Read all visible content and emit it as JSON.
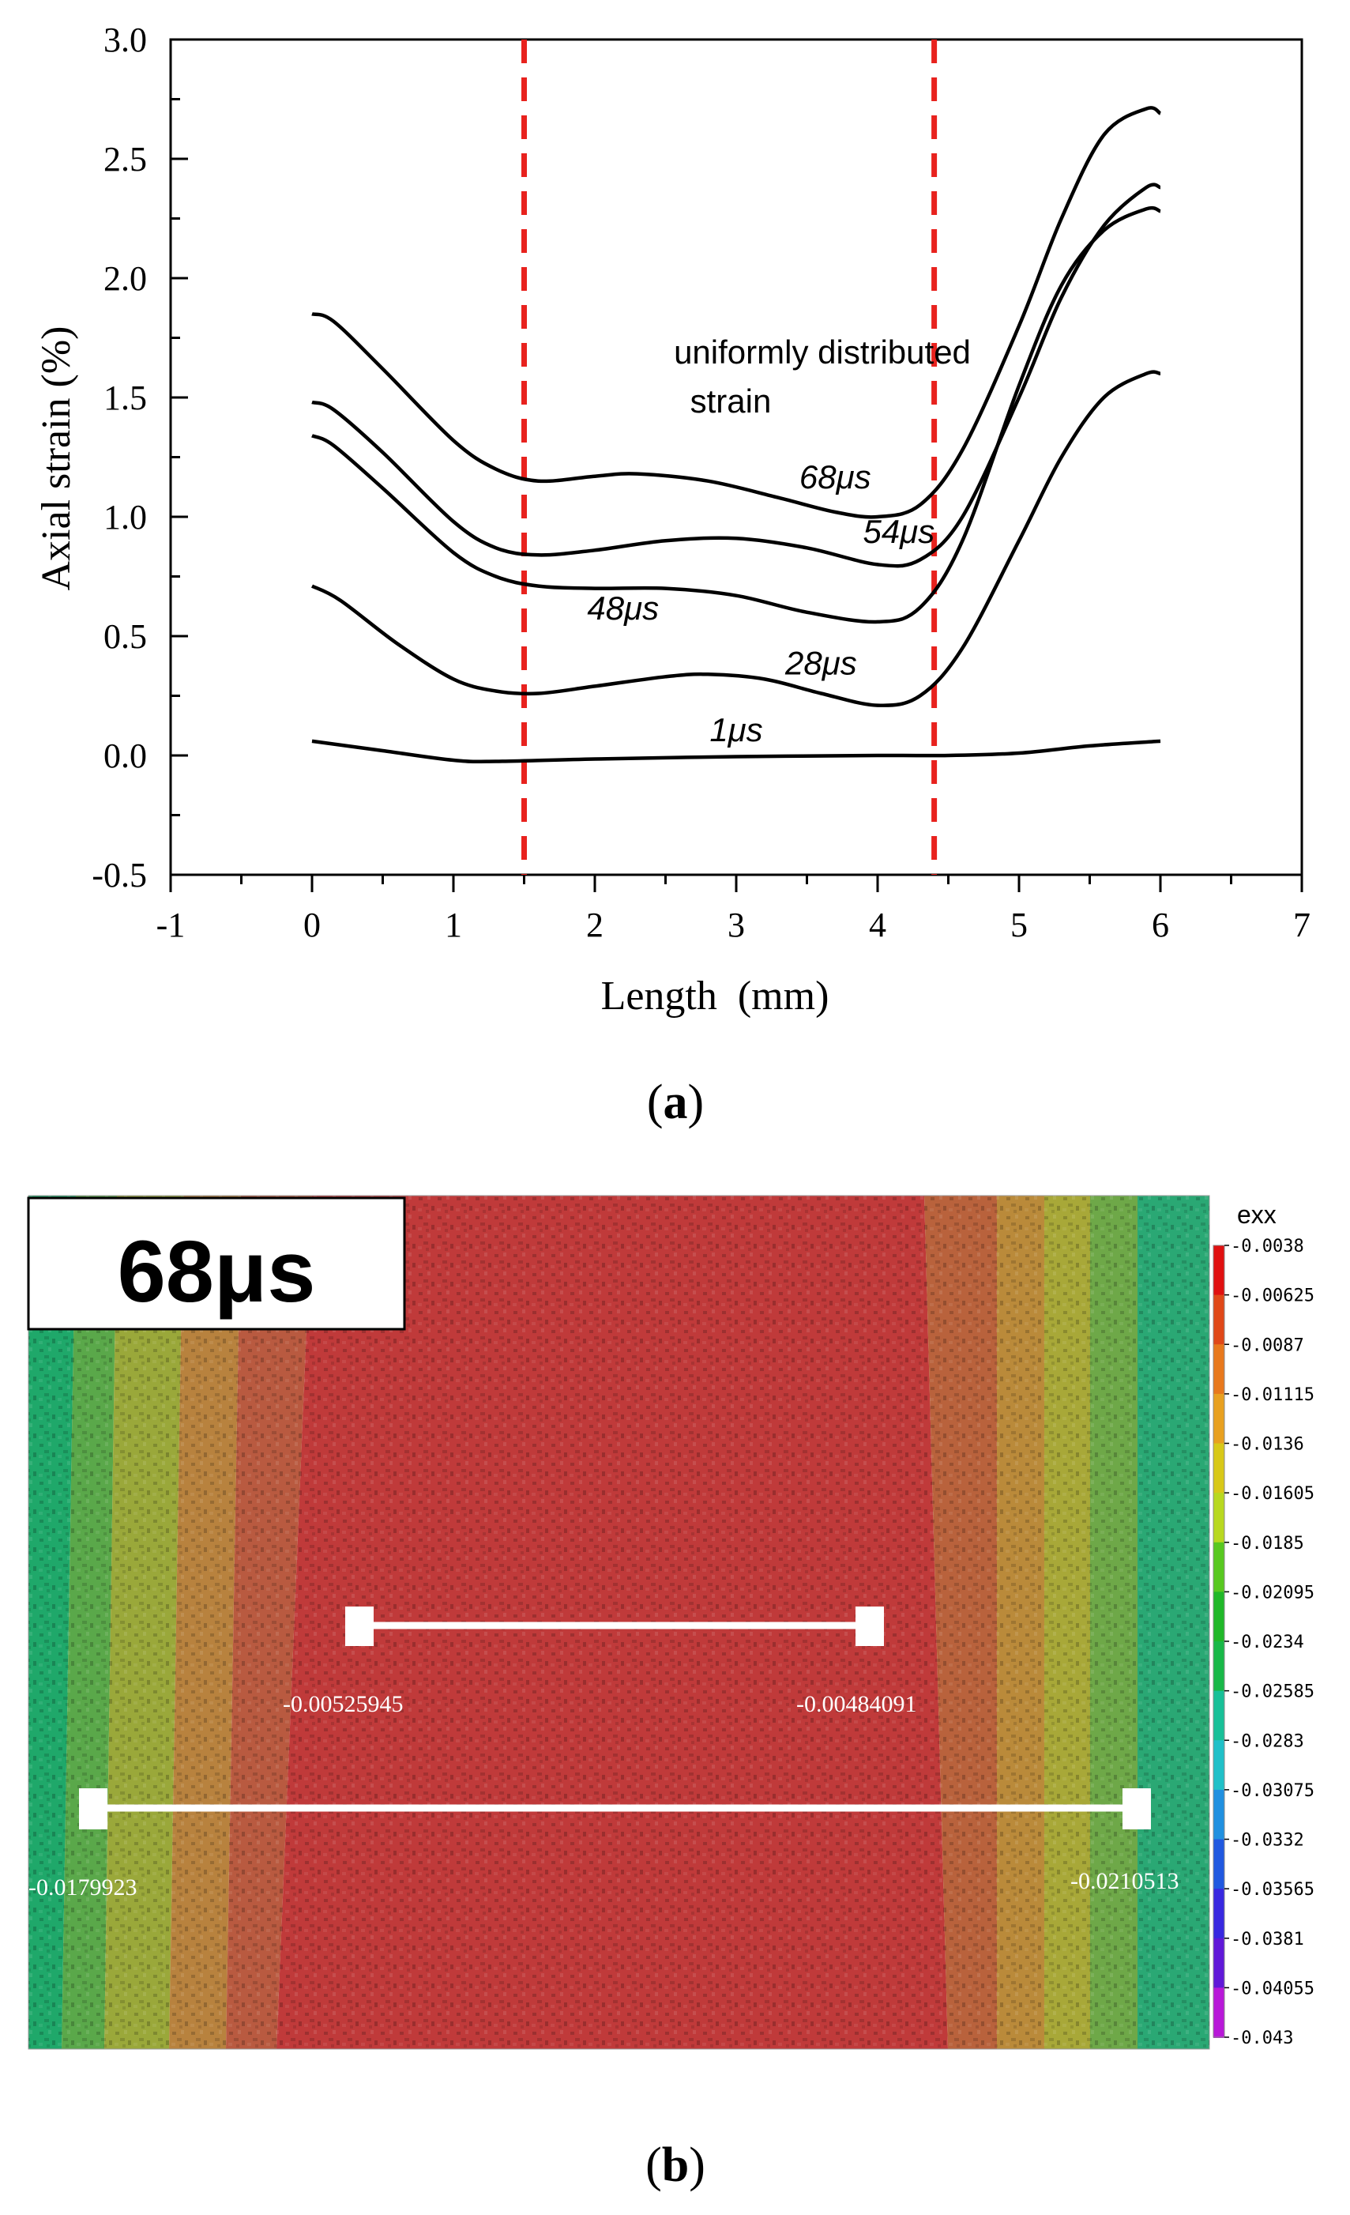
{
  "chart_data": [
    {
      "panel": "a",
      "type": "line",
      "xlabel": "Length  (mm)",
      "ylabel": "Axial strain (%)",
      "xlim": [
        -1,
        7
      ],
      "ylim": [
        -0.5,
        3.0
      ],
      "xticks": [
        "-1",
        "0",
        "1",
        "2",
        "3",
        "4",
        "5",
        "6",
        "7"
      ],
      "yticks": [
        "3.0",
        "2.5",
        "2.0",
        "1.5",
        "1.0",
        "0.5",
        "0.0",
        "-0.5"
      ],
      "region_lines_x": [
        1.5,
        4.4
      ],
      "region_color": "#e8221e",
      "region_label": [
        "uniformly distributed",
        "strain"
      ],
      "series": [
        {
          "name": "68μs",
          "x": [
            0,
            0.15,
            0.5,
            1.0,
            1.3,
            1.6,
            2.0,
            2.3,
            2.8,
            3.3,
            3.7,
            4.0,
            4.3,
            4.6,
            5.0,
            5.3,
            5.6,
            5.9,
            6.0
          ],
          "y": [
            1.85,
            1.82,
            1.62,
            1.32,
            1.2,
            1.15,
            1.17,
            1.18,
            1.15,
            1.08,
            1.02,
            1.0,
            1.05,
            1.28,
            1.8,
            2.25,
            2.6,
            2.71,
            2.69
          ]
        },
        {
          "name": "54μs",
          "x": [
            0,
            0.15,
            0.5,
            1.0,
            1.3,
            1.6,
            2.0,
            2.5,
            3.0,
            3.5,
            4.0,
            4.3,
            4.6,
            5.0,
            5.3,
            5.6,
            5.9,
            6.0
          ],
          "y": [
            1.48,
            1.45,
            1.27,
            0.98,
            0.87,
            0.84,
            0.86,
            0.9,
            0.91,
            0.87,
            0.8,
            0.82,
            1.0,
            1.5,
            1.92,
            2.22,
            2.38,
            2.38
          ]
        },
        {
          "name": "48μs",
          "x": [
            0,
            0.15,
            0.5,
            1.0,
            1.3,
            1.6,
            2.0,
            2.5,
            3.0,
            3.5,
            4.0,
            4.3,
            4.6,
            5.0,
            5.3,
            5.6,
            5.9,
            6.0
          ],
          "y": [
            1.34,
            1.3,
            1.12,
            0.85,
            0.75,
            0.71,
            0.7,
            0.7,
            0.67,
            0.6,
            0.56,
            0.62,
            0.9,
            1.55,
            1.97,
            2.2,
            2.29,
            2.28
          ]
        },
        {
          "name": "28μs",
          "x": [
            0,
            0.2,
            0.6,
            1.0,
            1.3,
            1.6,
            2.0,
            2.5,
            2.8,
            3.2,
            3.6,
            4.0,
            4.3,
            4.6,
            5.0,
            5.3,
            5.6,
            5.9,
            6.0
          ],
          "y": [
            0.71,
            0.65,
            0.47,
            0.32,
            0.27,
            0.26,
            0.29,
            0.33,
            0.34,
            0.32,
            0.26,
            0.21,
            0.25,
            0.45,
            0.9,
            1.25,
            1.5,
            1.6,
            1.6
          ]
        },
        {
          "name": "1μs",
          "x": [
            0,
            0.5,
            1.0,
            1.3,
            2.0,
            3.0,
            4.0,
            4.5,
            5.0,
            5.5,
            6.0
          ],
          "y": [
            0.06,
            0.02,
            -0.02,
            -0.025,
            -0.015,
            -0.005,
            0.0,
            0.0,
            0.01,
            0.04,
            0.06
          ]
        }
      ],
      "curve_labels": [
        {
          "text": "68μs",
          "x": 3.7,
          "y": 1.12
        },
        {
          "text": "54μs",
          "x": 4.15,
          "y": 0.89
        },
        {
          "text": "48μs",
          "x": 2.2,
          "y": 0.57
        },
        {
          "text": "28μs",
          "x": 3.6,
          "y": 0.34
        },
        {
          "text": "1μs",
          "x": 3.0,
          "y": 0.06
        }
      ]
    },
    {
      "panel": "b",
      "type": "heatmap",
      "quantity": "exx",
      "time_label": "68μs",
      "legend_title": "exx",
      "legend_values": [
        "-0.0038",
        "-0.00625",
        "-0.0087",
        "-0.01115",
        "-0.0136",
        "-0.01605",
        "-0.0185",
        "-0.02095",
        "-0.0234",
        "-0.02585",
        "-0.0283",
        "-0.03075",
        "-0.0332",
        "-0.03565",
        "-0.0381",
        "-0.04055",
        "-0.043"
      ],
      "legend_colors": [
        "#e01010",
        "#e04818",
        "#e8781c",
        "#e8a020",
        "#d8c818",
        "#b8d820",
        "#58c820",
        "#20b828",
        "#18b848",
        "#18c098",
        "#20c0c8",
        "#2090e0",
        "#2058e0",
        "#3828e0",
        "#6018d8",
        "#b818d8",
        "#e010c8"
      ],
      "markers": [
        {
          "label": "-0.00525945",
          "value": -0.00525945
        },
        {
          "label": "-0.00484091",
          "value": -0.00484091
        },
        {
          "label": "-0.0179923",
          "value": -0.0179923
        },
        {
          "label": "-0.0210513",
          "value": -0.0210513
        }
      ]
    }
  ],
  "captions": {
    "a": "(a)",
    "b": "(b)"
  }
}
